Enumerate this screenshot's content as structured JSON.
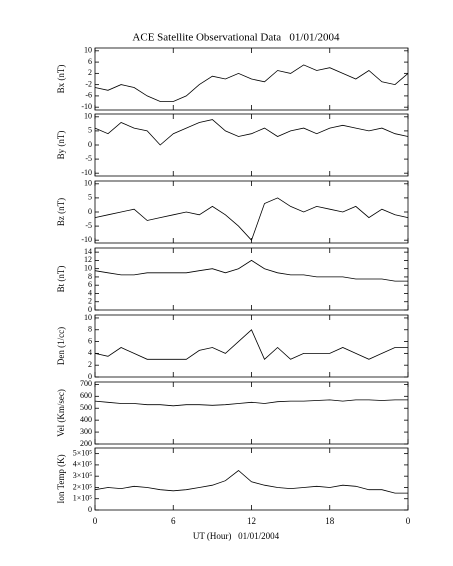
{
  "title": "ACE Satellite Observational Data   01/01/2004",
  "x_axis": {
    "label": "UT (Hour)   01/01/2004",
    "xlim": [
      0,
      24
    ],
    "xticks": [
      0,
      6,
      12,
      18,
      {
        "value": 24,
        "label": "0"
      }
    ]
  },
  "chart_data": [
    {
      "type": "line",
      "y_label": "Bx (nT)",
      "color": "#000000",
      "ylim": [
        -11,
        11
      ],
      "yticks": [
        -10,
        -6,
        -2,
        2,
        6,
        10
      ],
      "x": [
        0,
        1,
        2,
        3,
        4,
        5,
        6,
        7,
        8,
        9,
        10,
        11,
        12,
        13,
        14,
        15,
        16,
        17,
        18,
        19,
        20,
        21,
        22,
        23,
        24
      ],
      "values": [
        -3,
        -4,
        -2,
        -3,
        -6,
        -8,
        -8,
        -6,
        -2,
        1,
        0,
        2,
        0,
        -1,
        3,
        2,
        5,
        3,
        4,
        2,
        0,
        3,
        -1,
        -2,
        2
      ]
    },
    {
      "type": "line",
      "y_label": "By (nT)",
      "color": "#000000",
      "ylim": [
        -11,
        11
      ],
      "yticks": [
        -10,
        -5,
        0,
        5,
        10
      ],
      "x": [
        0,
        1,
        2,
        3,
        4,
        5,
        6,
        7,
        8,
        9,
        10,
        11,
        12,
        13,
        14,
        15,
        16,
        17,
        18,
        19,
        20,
        21,
        22,
        23,
        24
      ],
      "values": [
        6,
        4,
        8,
        6,
        5,
        0,
        4,
        6,
        8,
        9,
        5,
        3,
        4,
        6,
        3,
        5,
        6,
        4,
        6,
        7,
        6,
        5,
        6,
        4,
        3
      ]
    },
    {
      "type": "line",
      "y_label": "Bz (nT)",
      "color": "#000000",
      "ylim": [
        -11,
        11
      ],
      "yticks": [
        -10,
        -5,
        0,
        5,
        10
      ],
      "x": [
        0,
        1,
        2,
        3,
        4,
        5,
        6,
        7,
        8,
        9,
        10,
        11,
        12,
        13,
        14,
        15,
        16,
        17,
        18,
        19,
        20,
        21,
        22,
        23,
        24
      ],
      "values": [
        -2,
        -1,
        0,
        1,
        -3,
        -2,
        -1,
        0,
        -1,
        2,
        -1,
        -5,
        -10,
        3,
        5,
        2,
        0,
        2,
        1,
        0,
        2,
        -2,
        1,
        -1,
        -2
      ]
    },
    {
      "type": "line",
      "y_label": "Bt (nT)",
      "color": "#000000",
      "ylim": [
        0,
        15
      ],
      "yticks": [
        0,
        2,
        4,
        6,
        8,
        10,
        12,
        14
      ],
      "x": [
        0,
        1,
        2,
        3,
        4,
        5,
        6,
        7,
        8,
        9,
        10,
        11,
        12,
        13,
        14,
        15,
        16,
        17,
        18,
        19,
        20,
        21,
        22,
        23,
        24
      ],
      "values": [
        9.5,
        9,
        8.5,
        8.5,
        9,
        9,
        9,
        9,
        9.5,
        10,
        9,
        10,
        12,
        10,
        9,
        8.5,
        8.5,
        8,
        8,
        8,
        7.5,
        7.5,
        7.5,
        7,
        7
      ]
    },
    {
      "type": "line",
      "y_label": "Den (1/cc)",
      "color": "#000000",
      "ylim": [
        0,
        10.5
      ],
      "yticks": [
        0,
        2,
        4,
        6,
        8,
        10
      ],
      "x": [
        0,
        1,
        2,
        3,
        4,
        5,
        6,
        7,
        8,
        9,
        10,
        11,
        12,
        13,
        14,
        15,
        16,
        17,
        18,
        19,
        20,
        21,
        22,
        23,
        24
      ],
      "values": [
        4,
        3.5,
        5,
        4,
        3,
        3,
        3,
        3,
        4.5,
        5,
        4,
        6,
        8,
        3,
        5,
        3,
        4,
        4,
        4,
        5,
        4,
        3,
        4,
        5,
        5
      ]
    },
    {
      "type": "line",
      "y_label": "Vel (Km/sec)",
      "color": "#000000",
      "ylim": [
        200,
        720
      ],
      "yticks": [
        200,
        300,
        400,
        500,
        600,
        700
      ],
      "x": [
        0,
        1,
        2,
        3,
        4,
        5,
        6,
        7,
        8,
        9,
        10,
        11,
        12,
        13,
        14,
        15,
        16,
        17,
        18,
        19,
        20,
        21,
        22,
        23,
        24
      ],
      "values": [
        560,
        550,
        540,
        540,
        530,
        530,
        520,
        530,
        530,
        525,
        530,
        540,
        550,
        540,
        555,
        560,
        560,
        565,
        570,
        560,
        570,
        570,
        565,
        570,
        570
      ]
    },
    {
      "type": "line",
      "y_label": "Ion Temp (K)",
      "color": "#000000",
      "ylim": [
        0,
        550000
      ],
      "yticks": [
        0,
        {
          "value": 100000,
          "label": "1×10⁵"
        },
        {
          "value": 200000,
          "label": "2×10⁵"
        },
        {
          "value": 300000,
          "label": "3×10⁵"
        },
        {
          "value": 400000,
          "label": "4×10⁵"
        },
        {
          "value": 500000,
          "label": "5×10⁵"
        }
      ],
      "x": [
        0,
        1,
        2,
        3,
        4,
        5,
        6,
        7,
        8,
        9,
        10,
        11,
        12,
        13,
        14,
        15,
        16,
        17,
        18,
        19,
        20,
        21,
        22,
        23,
        24
      ],
      "values": [
        180000,
        200000,
        190000,
        210000,
        200000,
        180000,
        170000,
        180000,
        200000,
        220000,
        260000,
        350000,
        250000,
        220000,
        200000,
        190000,
        200000,
        210000,
        200000,
        220000,
        210000,
        180000,
        180000,
        150000,
        150000
      ]
    }
  ]
}
